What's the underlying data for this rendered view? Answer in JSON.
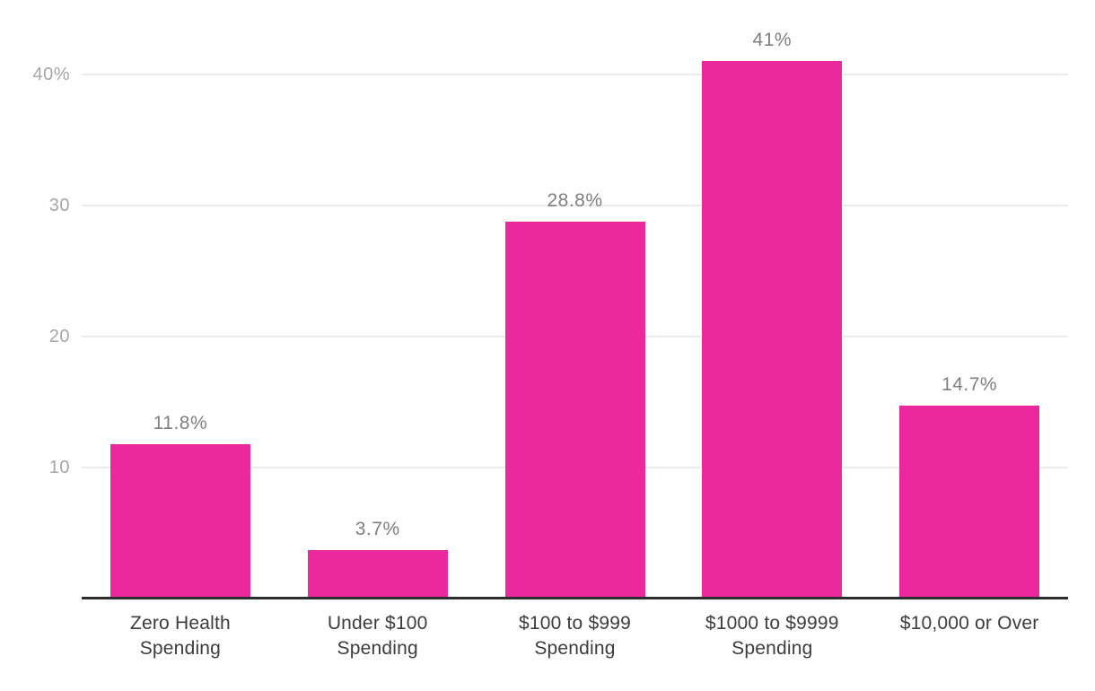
{
  "chart_data": {
    "type": "bar",
    "title": "",
    "xlabel": "",
    "ylabel": "",
    "categories": [
      "Zero Health\nSpending",
      "Under $100\nSpending",
      "$100 to $999\nSpending",
      "$1000 to $9999\nSpending",
      "$10,000 or Over"
    ],
    "values": [
      11.8,
      3.7,
      28.8,
      41,
      14.7
    ],
    "value_labels": [
      "11.8%",
      "3.7%",
      "28.8%",
      "41%",
      "14.7%"
    ],
    "yticks": [
      {
        "value": 10,
        "label": "10"
      },
      {
        "value": 20,
        "label": "20"
      },
      {
        "value": 30,
        "label": "30"
      },
      {
        "value": 40,
        "label": "40%"
      }
    ],
    "ylim": [
      0,
      44
    ],
    "grid": true,
    "legend": false,
    "colors": {
      "bar": "#e9299c",
      "gridline": "#ebebeb",
      "axis_line": "#2e2e2e",
      "ytick_label": "#a6a6a6",
      "value_label": "#7f7f7f",
      "xtick_label": "#3c3c3c",
      "background": "#ffffff"
    }
  }
}
